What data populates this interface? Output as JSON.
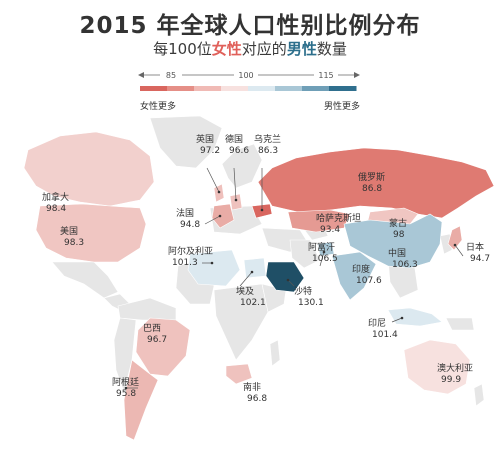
{
  "title": "2015 年全球人口性别比例分布",
  "subtitle": {
    "prefix": "每100位",
    "female": "女性",
    "middle": "对应的",
    "male": "男性",
    "suffix": "数量"
  },
  "legend": {
    "ticks": [
      "85",
      "100",
      "115"
    ],
    "left_label": "女性更多",
    "right_label": "男性更多",
    "colors": [
      "#d9665f",
      "#e58f87",
      "#f0bab5",
      "#f7e1df",
      "#dce9f0",
      "#a9c7d6",
      "#6f9fb7",
      "#2f6f8e"
    ]
  },
  "colors": {
    "ocean": "#ffffff",
    "land_default": "#e6e6e6",
    "border": "#ffffff"
  },
  "countries": [
    {
      "name": "加拿大",
      "value": "98.4",
      "fill": "#f2d0cd"
    },
    {
      "name": "美国",
      "value": "98.3",
      "fill": "#f0c6c2"
    },
    {
      "name": "巴西",
      "value": "96.7",
      "fill": "#efc2be"
    },
    {
      "name": "阿根廷",
      "value": "95.8",
      "fill": "#ecb8b3"
    },
    {
      "name": "英国",
      "value": "97.2",
      "fill": "#efc0bc"
    },
    {
      "name": "德国",
      "value": "96.6",
      "fill": "#efc2be"
    },
    {
      "name": "法国",
      "value": "94.8",
      "fill": "#e9aca6"
    },
    {
      "name": "乌克兰",
      "value": "86.3",
      "fill": "#d9665f"
    },
    {
      "name": "俄罗斯",
      "value": "86.8",
      "fill": "#df7a72"
    },
    {
      "name": "哈萨克斯坦",
      "value": "93.4",
      "fill": "#e59a93"
    },
    {
      "name": "蒙古",
      "value": "98",
      "fill": "#f0c6c2"
    },
    {
      "name": "中国",
      "value": "106.3",
      "fill": "#a9c7d6"
    },
    {
      "name": "日本",
      "value": "94.7",
      "fill": "#e9aca6"
    },
    {
      "name": "阿尔及利亚",
      "value": "101.3",
      "fill": "#dce9f0"
    },
    {
      "name": "阿富汗",
      "value": "106.5",
      "fill": "#a9c7d6"
    },
    {
      "name": "印度",
      "value": "107.6",
      "fill": "#a9c7d6"
    },
    {
      "name": "埃及",
      "value": "102.1",
      "fill": "#dce9f0"
    },
    {
      "name": "沙特",
      "value": "130.1",
      "fill": "#1f4f66"
    },
    {
      "name": "印尼",
      "value": "101.4",
      "fill": "#dce9f0"
    },
    {
      "name": "南非",
      "value": "96.8",
      "fill": "#efc2be"
    },
    {
      "name": "澳大利亚",
      "value": "99.9",
      "fill": "#f7e1df"
    }
  ]
}
